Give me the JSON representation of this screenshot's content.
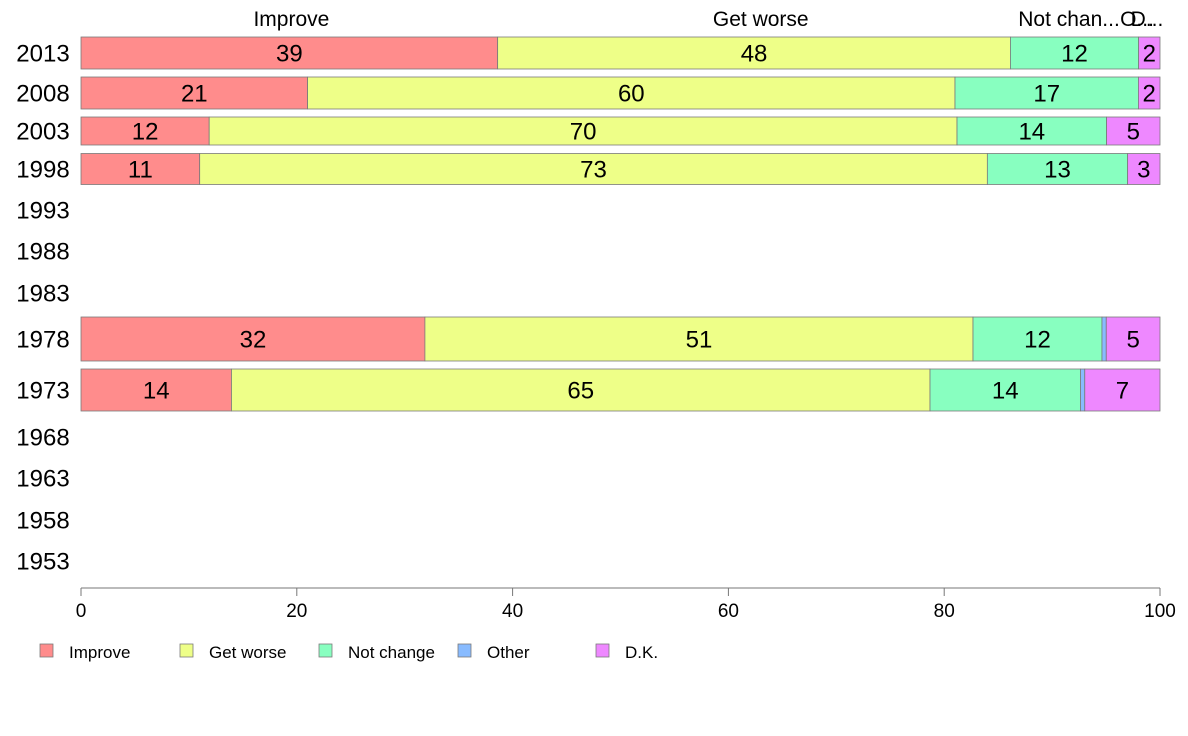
{
  "chart_data": {
    "type": "bar",
    "orientation": "horizontal",
    "stacked": true,
    "title": "",
    "xlabel": "",
    "ylabel": "",
    "xlim": [
      0,
      100
    ],
    "x_ticks": [
      0,
      20,
      40,
      60,
      80,
      100
    ],
    "grid": false,
    "legend_position": "bottom-left",
    "column_headers": [
      "Improve",
      "Get worse",
      "Not chan...",
      "O...",
      "D..."
    ],
    "categories": [
      "2013",
      "2008",
      "2003",
      "1998",
      "1993",
      "1988",
      "1983",
      "1978",
      "1973",
      "1968",
      "1963",
      "1958",
      "1953"
    ],
    "series": [
      {
        "name": "Improve",
        "color": "#ff8c8c",
        "values": [
          39,
          21,
          12,
          11,
          null,
          null,
          null,
          32,
          14,
          null,
          null,
          null,
          null
        ]
      },
      {
        "name": "Get worse",
        "color": "#eeff88",
        "values": [
          48,
          60,
          70,
          73,
          null,
          null,
          null,
          51,
          65,
          null,
          null,
          null,
          null
        ]
      },
      {
        "name": "Not change",
        "color": "#88ffc0",
        "values": [
          12,
          17,
          14,
          13,
          null,
          null,
          null,
          12,
          14,
          null,
          null,
          null,
          null
        ]
      },
      {
        "name": "Other",
        "color": "#88bbff",
        "values": [
          0,
          0,
          0,
          0,
          null,
          null,
          null,
          0.4,
          0.4,
          null,
          null,
          null,
          null
        ]
      },
      {
        "name": "D.K.",
        "color": "#ee88ff",
        "values": [
          2,
          2,
          5,
          3,
          null,
          null,
          null,
          5,
          7,
          null,
          null,
          null,
          null
        ]
      }
    ],
    "segment_labels": [
      [
        "39",
        "21",
        "12",
        "11",
        null,
        null,
        null,
        "32",
        "14",
        null,
        null,
        null,
        null
      ],
      [
        "48",
        "60",
        "70",
        "73",
        null,
        null,
        null,
        "51",
        "65",
        null,
        null,
        null,
        null
      ],
      [
        "12",
        "17",
        "14",
        "13",
        null,
        null,
        null,
        "12",
        "14",
        null,
        null,
        null,
        null
      ],
      [
        null,
        null,
        null,
        null,
        null,
        null,
        null,
        null,
        null,
        null,
        null,
        null,
        null
      ],
      [
        "2",
        "2",
        "5",
        "3",
        null,
        null,
        null,
        "5",
        "7",
        null,
        null,
        null,
        null
      ]
    ]
  }
}
